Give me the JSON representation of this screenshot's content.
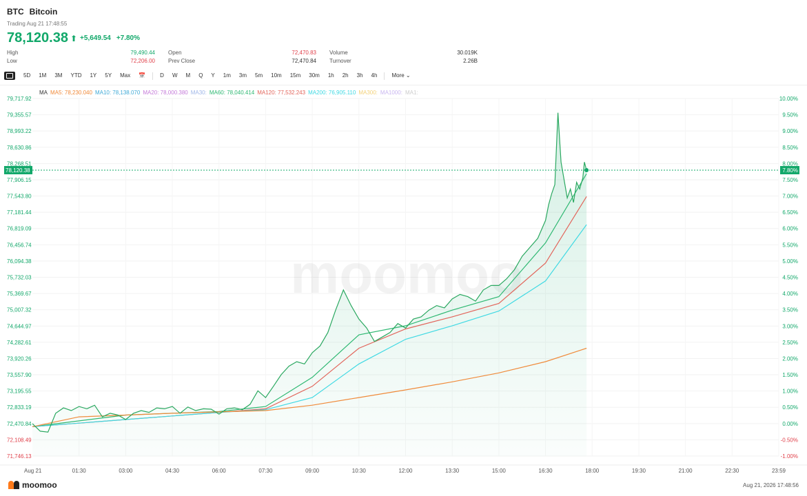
{
  "header": {
    "symbol": "BTC",
    "name": "Bitcoin",
    "trading_time": "Trading Aug 21 17:48:55",
    "price": "78,120.38",
    "change": "+5,649.54",
    "change_pct": "+7.80%"
  },
  "stats": {
    "col1": [
      {
        "label": "High",
        "value": "79,490.44",
        "color": "#12a86a"
      },
      {
        "label": "Low",
        "value": "72,206.00",
        "color": "#e0414b"
      }
    ],
    "col2": [
      {
        "label": "Open",
        "value": "72,470.83",
        "color": "#e0414b"
      },
      {
        "label": "Prev Close",
        "value": "72,470.84",
        "color": "#333333"
      }
    ],
    "col3": [
      {
        "label": "Volume",
        "value": "30.019K",
        "color": "#333333"
      },
      {
        "label": "Turnover",
        "value": "2.26B",
        "color": "#333333"
      }
    ]
  },
  "toolbar": {
    "ranges": [
      "5D",
      "1M",
      "3M",
      "YTD",
      "1Y",
      "5Y",
      "Max"
    ],
    "intervals": [
      "D",
      "W",
      "M",
      "Q",
      "Y",
      "1m",
      "3m",
      "5m",
      "10m",
      "15m",
      "30m",
      "1h",
      "2h",
      "3h",
      "4h"
    ],
    "more": "More"
  },
  "ma_legend": [
    {
      "text": "MA",
      "color": "#333333"
    },
    {
      "text": "MA5: 78,230.040",
      "color": "#f08a3a"
    },
    {
      "text": "MA10: 78,138.070",
      "color": "#3fa9d6"
    },
    {
      "text": "MA20: 78,000.380",
      "color": "#c57bd9"
    },
    {
      "text": "MA30:",
      "color": "#9fb6e8"
    },
    {
      "text": "MA60: 78,040.414",
      "color": "#2eb872"
    },
    {
      "text": "MA120: 77,532.243",
      "color": "#e2645a"
    },
    {
      "text": "MA200: 76,905.110",
      "color": "#3fd9e3"
    },
    {
      "text": "MA300:",
      "color": "#f3d27a"
    },
    {
      "text": "MA1000:",
      "color": "#c9b6f0"
    },
    {
      "text": "MA1:",
      "color": "#cccccc"
    }
  ],
  "chart_data": {
    "type": "line",
    "title": "",
    "ylim": [
      71746.13,
      79717.92
    ],
    "reference_price": 72470.84,
    "last_price": 78120.38,
    "last_price_label": "78,120.38",
    "last_pct_label": "7.80%",
    "y_ticks": [
      "79,717.92",
      "79,355.57",
      "78,993.22",
      "78,630.86",
      "78,268.51",
      "77,906.15",
      "77,543.80",
      "77,181.44",
      "76,819.09",
      "76,456.74",
      "76,094.38",
      "75,732.03",
      "75,369.67",
      "75,007.32",
      "74,644.97",
      "74,282.61",
      "73,920.26",
      "73,557.90",
      "73,195.55",
      "72,833.19",
      "72,470.84",
      "72,108.49",
      "71,746.13"
    ],
    "pct_ticks": [
      "10.00%",
      "9.50%",
      "9.00%",
      "8.50%",
      "8.00%",
      "7.50%",
      "7.00%",
      "6.50%",
      "6.00%",
      "5.50%",
      "5.00%",
      "4.50%",
      "4.00%",
      "3.50%",
      "3.00%",
      "2.50%",
      "2.00%",
      "1.50%",
      "1.00%",
      "0.50%",
      "0.00%",
      "-0.50%",
      "-1.00%"
    ],
    "x_ticks": [
      "Aug 21",
      "01:30",
      "03:00",
      "04:30",
      "06:00",
      "07:30",
      "09:00",
      "10:30",
      "12:00",
      "13:30",
      "15:00",
      "16:30",
      "18:00",
      "19:30",
      "21:00",
      "22:30",
      "23:59"
    ],
    "x_tick_hours": [
      0,
      1.5,
      3,
      4.5,
      6,
      7.5,
      9,
      10.5,
      12,
      13.5,
      15,
      16.5,
      18,
      19.5,
      21,
      22.5,
      24
    ],
    "price_series": {
      "x": [
        0,
        0.25,
        0.5,
        0.75,
        1,
        1.25,
        1.5,
        1.75,
        2,
        2.25,
        2.5,
        2.75,
        3,
        3.25,
        3.5,
        3.75,
        4,
        4.25,
        4.5,
        4.75,
        5,
        5.25,
        5.5,
        5.75,
        6,
        6.25,
        6.5,
        6.75,
        7,
        7.25,
        7.5,
        7.75,
        8,
        8.25,
        8.5,
        8.75,
        9,
        9.25,
        9.5,
        9.75,
        10,
        10.25,
        10.5,
        10.75,
        11,
        11.25,
        11.5,
        11.75,
        12,
        12.25,
        12.5,
        12.75,
        13,
        13.25,
        13.5,
        13.75,
        14,
        14.25,
        14.5,
        14.75,
        15,
        15.25,
        15.5,
        15.75,
        16,
        16.25,
        16.5,
        16.6,
        16.7,
        16.8,
        16.9,
        17,
        17.1,
        17.2,
        17.3,
        17.4,
        17.5,
        17.6,
        17.7,
        17.75,
        17.82
      ],
      "values": [
        72470,
        72300,
        72280,
        72700,
        72820,
        72760,
        72850,
        72800,
        72880,
        72620,
        72700,
        72660,
        72560,
        72700,
        72760,
        72720,
        72820,
        72800,
        72850,
        72700,
        72840,
        72760,
        72800,
        72790,
        72680,
        72800,
        72820,
        72780,
        72900,
        73200,
        73050,
        73300,
        73560,
        73750,
        73850,
        73800,
        74050,
        74200,
        74500,
        75000,
        75450,
        75100,
        74800,
        74600,
        74300,
        74400,
        74500,
        74700,
        74600,
        74800,
        74850,
        75000,
        75100,
        75050,
        75250,
        75350,
        75300,
        75200,
        75450,
        75550,
        75550,
        75700,
        75900,
        76200,
        76400,
        76600,
        77000,
        77350,
        77600,
        77800,
        79400,
        78300,
        77900,
        77500,
        77700,
        77400,
        77850,
        77700,
        77950,
        78300,
        78120
      ]
    },
    "ma_series": [
      {
        "name": "MA60",
        "color": "#2eb872",
        "x": [
          0,
          3,
          6,
          7.5,
          9,
          10.5,
          12,
          13.5,
          15,
          16.5,
          17.82
        ],
        "values": [
          72400,
          72660,
          72740,
          72850,
          73500,
          74450,
          74650,
          75000,
          75300,
          76500,
          78040
        ]
      },
      {
        "name": "MA120",
        "color": "#e2645a",
        "x": [
          0,
          3,
          6,
          7.5,
          9,
          10.5,
          12,
          13.5,
          15,
          16.5,
          17.82
        ],
        "values": [
          72400,
          72560,
          72720,
          72800,
          73300,
          74150,
          74580,
          74850,
          75150,
          76050,
          77532
        ]
      },
      {
        "name": "MA200",
        "color": "#3fd9e3",
        "x": [
          0,
          3,
          6,
          7.5,
          9,
          10.5,
          12,
          13.5,
          15,
          16.5,
          17.82
        ],
        "values": [
          72400,
          72560,
          72720,
          72780,
          73050,
          73800,
          74350,
          74650,
          74980,
          75650,
          76905
        ]
      },
      {
        "name": "MA1000",
        "color": "#f08a3a",
        "x": [
          0,
          1.5,
          3,
          4.5,
          6,
          7.5,
          9,
          10.5,
          12,
          13.5,
          15,
          16.5,
          17.82
        ],
        "values": [
          72400,
          72620,
          72660,
          72700,
          72730,
          72760,
          72880,
          73050,
          73220,
          73400,
          73600,
          73850,
          74150
        ]
      }
    ]
  },
  "footer": {
    "brand": "moomoo",
    "timestamp": "Aug 21, 2026 17:48:56"
  }
}
